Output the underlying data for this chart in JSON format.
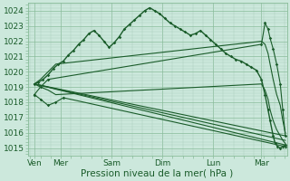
{
  "xlabel": "Pression niveau de la mer( hPa )",
  "bg_color": "#cce8dc",
  "grid_major_color": "#88bb99",
  "grid_minor_color": "#aaccbb",
  "line_color": "#1a5c2a",
  "ylim": [
    1014.5,
    1024.5
  ],
  "yticks": [
    1015,
    1016,
    1017,
    1018,
    1019,
    1020,
    1021,
    1022,
    1023,
    1024
  ],
  "x_labels": [
    "Ven",
    "Mer",
    "Sam",
    "Dim",
    "Lun",
    "Mar"
  ],
  "x_positions": [
    0.08,
    0.6,
    1.6,
    2.6,
    3.6,
    4.55
  ],
  "xlim": [
    -0.05,
    5.05
  ],
  "series": [
    {
      "x": [
        0.08,
        0.15,
        0.25,
        0.35,
        0.45,
        0.55,
        0.65,
        0.75,
        0.85,
        0.95,
        1.05,
        1.15,
        1.25,
        1.35,
        1.45,
        1.55,
        1.65,
        1.75,
        1.85,
        1.95,
        2.05,
        2.15,
        2.25,
        2.35,
        2.45,
        2.55,
        2.65,
        2.75,
        2.85,
        2.95,
        3.05,
        3.15,
        3.25,
        3.35,
        3.45,
        3.55,
        3.65,
        3.75,
        3.85,
        3.95,
        4.05,
        4.15,
        4.25,
        4.35,
        4.45,
        4.55,
        4.62,
        4.68,
        4.72,
        4.78,
        4.82,
        4.87,
        4.92,
        4.97,
        5.02
      ],
      "y": [
        1019.2,
        1019.3,
        1019.5,
        1019.8,
        1020.2,
        1020.5,
        1020.7,
        1021.1,
        1021.4,
        1021.8,
        1022.1,
        1022.5,
        1022.7,
        1022.4,
        1022.0,
        1021.6,
        1021.9,
        1022.3,
        1022.8,
        1023.1,
        1023.4,
        1023.7,
        1024.0,
        1024.2,
        1024.0,
        1023.8,
        1023.5,
        1023.2,
        1023.0,
        1022.8,
        1022.6,
        1022.4,
        1022.5,
        1022.7,
        1022.4,
        1022.1,
        1021.8,
        1021.5,
        1021.2,
        1021.0,
        1020.8,
        1020.7,
        1020.5,
        1020.3,
        1020.1,
        1019.5,
        1018.5,
        1017.5,
        1016.8,
        1015.8,
        1015.3,
        1015.1,
        1015.0,
        1015.1,
        1015.2
      ],
      "markers": true,
      "lw": 1.0
    },
    {
      "x": [
        0.08,
        5.02
      ],
      "y": [
        1019.2,
        1015.2
      ],
      "markers": false,
      "lw": 0.8
    },
    {
      "x": [
        0.08,
        0.2,
        0.35,
        0.5,
        0.65,
        5.02
      ],
      "y": [
        1018.5,
        1018.2,
        1017.8,
        1018.0,
        1018.3,
        1015.1
      ],
      "markers": true,
      "lw": 0.8
    },
    {
      "x": [
        0.08,
        5.02
      ],
      "y": [
        1019.2,
        1015.8
      ],
      "markers": false,
      "lw": 0.8
    },
    {
      "x": [
        0.08,
        0.2,
        0.35,
        0.5,
        4.55,
        4.62,
        4.68,
        4.72,
        4.78,
        4.85,
        4.92,
        4.97,
        5.02
      ],
      "y": [
        1019.2,
        1019.5,
        1020.0,
        1020.5,
        1022.0,
        1021.8,
        1021.2,
        1020.5,
        1019.5,
        1018.5,
        1017.8,
        1016.8,
        1016.0
      ],
      "markers": false,
      "lw": 0.8
    },
    {
      "x": [
        0.08,
        0.2,
        0.35,
        0.5,
        4.55,
        4.62,
        4.68,
        4.72,
        4.78,
        4.85,
        4.92,
        4.97,
        5.02
      ],
      "y": [
        1019.2,
        1019.0,
        1018.8,
        1018.5,
        1019.2,
        1018.8,
        1018.2,
        1017.5,
        1016.8,
        1016.2,
        1015.8,
        1015.5,
        1015.3
      ],
      "markers": false,
      "lw": 0.8
    },
    {
      "x": [
        0.08,
        5.02
      ],
      "y": [
        1019.2,
        1015.5
      ],
      "markers": false,
      "lw": 0.8
    },
    {
      "x": [
        0.08,
        0.2,
        0.35,
        4.55,
        4.62,
        4.68,
        4.72,
        4.78,
        4.85,
        4.92,
        4.97,
        5.02
      ],
      "y": [
        1018.5,
        1019.0,
        1019.5,
        1021.8,
        1023.2,
        1022.8,
        1022.2,
        1021.5,
        1020.5,
        1019.2,
        1017.5,
        1015.8
      ],
      "markers": true,
      "lw": 0.8
    }
  ]
}
